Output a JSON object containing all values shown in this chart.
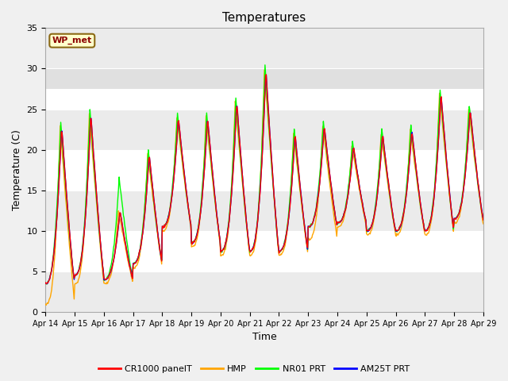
{
  "title": "Temperatures",
  "xlabel": "Time",
  "ylabel": "Temperature (C)",
  "ylim": [
    0,
    35
  ],
  "xlim": [
    0,
    360
  ],
  "fig_facecolor": "#f0f0f0",
  "plot_facecolor": "#ffffff",
  "annotation_text": "WP_met",
  "annotation_bg": "#ffffcc",
  "annotation_border": "#8b6914",
  "annotation_text_color": "#8b0000",
  "legend_entries": [
    "CR1000 panelT",
    "HMP",
    "NR01 PRT",
    "AM25T PRT"
  ],
  "line_colors": [
    "red",
    "orange",
    "lime",
    "blue"
  ],
  "xtick_labels": [
    "Apr 14",
    "Apr 15",
    "Apr 16",
    "Apr 17",
    "Apr 18",
    "Apr 19",
    "Apr 20",
    "Apr 21",
    "Apr 22",
    "Apr 23",
    "Apr 24",
    "Apr 25",
    "Apr 26",
    "Apr 27",
    "Apr 28",
    "Apr 29"
  ],
  "xtick_positions": [
    0,
    24,
    48,
    72,
    96,
    120,
    144,
    168,
    192,
    216,
    240,
    264,
    288,
    312,
    336,
    360
  ],
  "ytick_positions": [
    0,
    5,
    10,
    15,
    20,
    25,
    30,
    35
  ],
  "day_peaks": [
    23,
    24.5,
    12.5,
    19.5,
    24,
    24,
    26,
    30,
    22,
    23,
    20.5,
    22,
    22.5,
    27,
    25
  ],
  "day_mins": [
    3.5,
    4.5,
    4.0,
    6.0,
    10.5,
    8.5,
    7.5,
    7.5,
    7.5,
    10.5,
    11,
    10,
    10,
    10,
    11.5
  ],
  "hmp_offsets": [
    2.5,
    1.0,
    0.5,
    0.5,
    0.5,
    0.5,
    0.5,
    0.5,
    0.5,
    1.5,
    0.5,
    0.5,
    0.5,
    0.5,
    0.5
  ],
  "nr01_offsets": [
    0.5,
    0.5,
    4.0,
    0.5,
    0.5,
    0.5,
    0.5,
    0.5,
    0.5,
    0.5,
    0.5,
    0.5,
    0.5,
    0.5,
    0.5
  ],
  "gray_band_min": 27.5,
  "gray_band_color": "#e0e0e0"
}
